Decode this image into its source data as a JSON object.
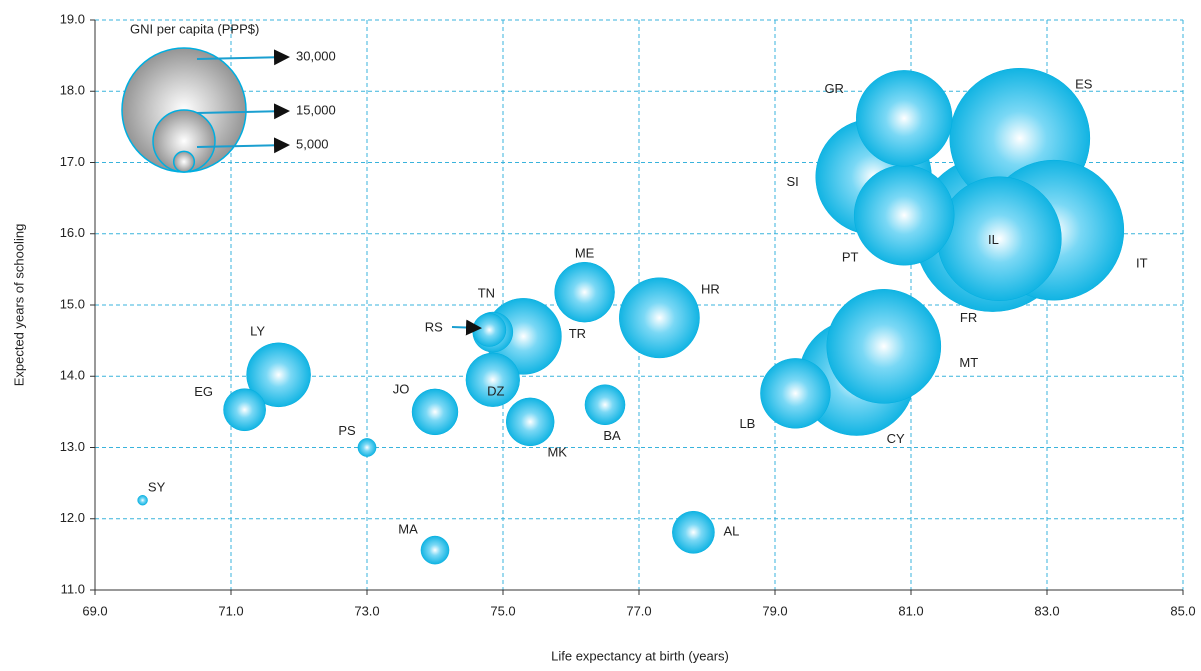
{
  "chart_data": {
    "type": "bubble",
    "x_label": "Life expectancy at birth (years)",
    "y_label": "Expected years of schooling",
    "legend_title": "GNI per capita (PPP$)",
    "legend_sizes": [
      {
        "value": 30000,
        "label": "30,000"
      },
      {
        "value": 15000,
        "label": "15,000"
      },
      {
        "value": 5000,
        "label": "5,000"
      }
    ],
    "labels": [
      "SY",
      "EG",
      "LY",
      "PS",
      "JO",
      "MA",
      "RS",
      "TN",
      "DZ",
      "TR",
      "MK",
      "ME",
      "BA",
      "HR",
      "AL",
      "LB",
      "CY",
      "MT",
      "PT",
      "SI",
      "GR",
      "ES",
      "IT",
      "FR",
      "IL"
    ],
    "x": [
      69.7,
      71.2,
      71.7,
      73.0,
      74.0,
      74.0,
      74.85,
      74.8,
      74.85,
      75.3,
      75.4,
      76.2,
      76.5,
      77.3,
      77.8,
      79.3,
      80.2,
      80.6,
      80.9,
      80.45,
      80.9,
      82.6,
      83.1,
      82.2,
      82.3
    ],
    "y": [
      12.26,
      13.53,
      14.02,
      13.0,
      13.5,
      11.56,
      14.62,
      14.65,
      13.95,
      14.56,
      13.36,
      15.18,
      13.6,
      14.82,
      11.81,
      13.76,
      13.98,
      14.42,
      16.26,
      16.8,
      17.62,
      17.34,
      16.05,
      16.0,
      15.93
    ],
    "sizes": [
      2400,
      10200,
      15500,
      4400,
      11100,
      6800,
      9700,
      8000,
      13000,
      18400,
      11600,
      14500,
      9700,
      19400,
      10200,
      16900,
      28000,
      27600,
      24200,
      28000,
      23200,
      33900,
      33900,
      37700,
      30000
    ],
    "xlim": [
      69,
      85
    ],
    "xticks": [
      {
        "value": 69,
        "label": "69.0"
      },
      {
        "value": 71,
        "label": "71.0"
      },
      {
        "value": 73,
        "label": "73.0"
      },
      {
        "value": 75,
        "label": "75.0"
      },
      {
        "value": 77,
        "label": "77.0"
      },
      {
        "value": 79,
        "label": "79.0"
      },
      {
        "value": 81,
        "label": "81.0"
      },
      {
        "value": 83,
        "label": "83.0"
      },
      {
        "value": 85,
        "label": "85.0"
      }
    ],
    "ylim": [
      11,
      19
    ],
    "yticks": [
      {
        "value": 11,
        "label": "11.0"
      },
      {
        "value": 12,
        "label": "12.0"
      },
      {
        "value": 13,
        "label": "13.0"
      },
      {
        "value": 14,
        "label": "14.0"
      },
      {
        "value": 15,
        "label": "15.0"
      },
      {
        "value": 16,
        "label": "16.0"
      },
      {
        "value": 17,
        "label": "17.0"
      },
      {
        "value": 18,
        "label": "18.0"
      },
      {
        "value": 19,
        "label": "19.0"
      }
    ],
    "grid": true,
    "color": "#00aee0"
  }
}
